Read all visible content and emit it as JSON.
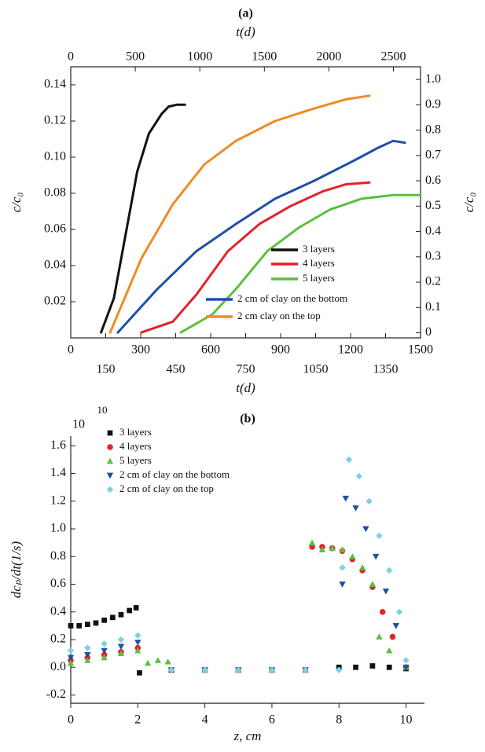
{
  "chart_data": [
    {
      "type": "line",
      "title": "(a)",
      "x_label": "t(d)",
      "x2_label": "t(d)",
      "y_label": "c/c₀",
      "y2_label": "c/c₀",
      "xlim": [
        0,
        1500
      ],
      "xticks": [
        0,
        150,
        300,
        450,
        600,
        750,
        900,
        1050,
        1200,
        1350,
        1500
      ],
      "x2lim": [
        0,
        2710
      ],
      "x2ticks": [
        0,
        500,
        1000,
        1500,
        2000,
        2500
      ],
      "ylim": [
        0,
        0.15
      ],
      "yticks": [
        0.02,
        0.04,
        0.06,
        0.08,
        {
          "value": 0.1,
          "label": "0.10"
        },
        0.12,
        0.14
      ],
      "y2lim": [
        -0.02,
        1.05
      ],
      "y2ticks": [
        0,
        0.1,
        0.2,
        0.3,
        0.4,
        0.5,
        0.6,
        0.7,
        0.8,
        0.9,
        {
          "value": 1,
          "label": "1.0"
        }
      ],
      "grid": false,
      "legend": "lower right",
      "series": [
        {
          "name": "3 layers",
          "color": "#111111",
          "x": [
            130,
            185,
            235,
            285,
            335,
            390,
            420,
            455,
            490
          ],
          "values": [
            0.003,
            0.022,
            0.057,
            0.092,
            0.113,
            0.124,
            0.128,
            0.129,
            0.129
          ]
        },
        {
          "name": "4 layers",
          "color": "#e32228",
          "x": [
            303,
            438,
            539,
            674,
            809,
            944,
            1079,
            1180,
            1281
          ],
          "values": [
            0.003,
            0.009,
            0.024,
            0.048,
            0.063,
            0.073,
            0.081,
            0.085,
            0.086
          ]
        },
        {
          "name": "5 layers",
          "color": "#5cbf3c",
          "x": [
            472,
            607,
            708,
            843,
            978,
            1112,
            1247,
            1382,
            1500
          ],
          "values": [
            0.003,
            0.013,
            0.027,
            0.048,
            0.061,
            0.071,
            0.077,
            0.079,
            0.079
          ]
        },
        {
          "name": "2 cm of clay on the bottom",
          "color": "#1f4fa8",
          "x": [
            202,
            371,
            539,
            708,
            876,
            1045,
            1213,
            1315,
            1382,
            1433
          ],
          "values": [
            0.003,
            0.027,
            0.048,
            0.063,
            0.077,
            0.087,
            0.098,
            0.105,
            0.109,
            0.108
          ]
        },
        {
          "name": "2 cm clay on the top",
          "color": "#f08a24",
          "x": [
            169,
            303,
            438,
            573,
            708,
            876,
            1045,
            1180,
            1281
          ],
          "values": [
            0.003,
            0.044,
            0.074,
            0.096,
            0.109,
            0.12,
            0.127,
            0.132,
            0.134
          ]
        }
      ]
    },
    {
      "type": "scatter",
      "title": "(b)",
      "x_label": "z, cm",
      "y_label": "dcₚ/dt(1/s)",
      "y_multiplier": "10",
      "y_multiplier_exponent": "10",
      "xlim": [
        0,
        10.55
      ],
      "xticks": [
        0,
        2,
        4,
        6,
        8,
        10
      ],
      "ylim": [
        -0.26,
        1.67
      ],
      "yticks": [
        -0.2,
        {
          "value": 0,
          "label": "0.0"
        },
        0.2,
        0.4,
        0.6,
        0.8,
        {
          "value": 1,
          "label": "1.0"
        },
        1.2,
        1.4,
        1.6
      ],
      "grid": false,
      "legend": "upper left",
      "series": [
        {
          "name": "3 layers",
          "color": "#111111",
          "marker": "square",
          "x": [
            0,
            0.25,
            0.5,
            0.75,
            1,
            1.25,
            1.5,
            1.75,
            1.95,
            2.05,
            3,
            4,
            5,
            6,
            7,
            8,
            8.5,
            9,
            9.5,
            10
          ],
          "values": [
            0.3,
            0.3,
            0.31,
            0.32,
            0.34,
            0.36,
            0.38,
            0.41,
            0.43,
            -0.04,
            -0.02,
            -0.02,
            -0.02,
            -0.02,
            -0.02,
            0,
            0,
            0.01,
            0,
            -0.01
          ]
        },
        {
          "name": "4 layers",
          "color": "#e0262c",
          "marker": "circle",
          "x": [
            0,
            0.5,
            1,
            1.5,
            2,
            3,
            4,
            5,
            6,
            7,
            7.2,
            7.5,
            7.8,
            8.1,
            8.4,
            8.7,
            9,
            9.3,
            9.6,
            10
          ],
          "values": [
            0.05,
            0.07,
            0.09,
            0.11,
            0.14,
            -0.02,
            -0.02,
            -0.02,
            -0.02,
            -0.02,
            0.87,
            0.87,
            0.86,
            0.84,
            0.78,
            0.7,
            0.58,
            0.4,
            0.22,
            0
          ]
        },
        {
          "name": "5 layers",
          "color": "#5cc040",
          "marker": "triangle",
          "x": [
            0,
            0.5,
            1,
            1.5,
            2,
            2.3,
            2.6,
            2.9,
            4,
            5,
            6,
            7,
            7.2,
            7.5,
            7.8,
            8.1,
            8.4,
            8.7,
            9,
            9.2,
            9.5,
            10
          ],
          "values": [
            0.03,
            0.05,
            0.07,
            0.1,
            0.12,
            0.03,
            0.05,
            0.04,
            -0.02,
            -0.02,
            -0.02,
            -0.02,
            0.9,
            0.85,
            0.86,
            0.85,
            0.8,
            0.72,
            0.6,
            0.22,
            0.12,
            0
          ]
        },
        {
          "name": "2 cm of clay on the bottom",
          "color": "#1f4fa0",
          "marker": "triangle-down",
          "x": [
            0,
            0.5,
            1,
            1.5,
            2,
            3,
            4,
            5,
            6,
            7,
            8,
            8.1,
            8.2,
            8.5,
            8.8,
            9.1,
            9.4,
            9.7,
            10
          ],
          "values": [
            0.07,
            0.09,
            0.12,
            0.15,
            0.18,
            -0.02,
            -0.02,
            -0.02,
            -0.02,
            -0.02,
            -0.02,
            0.6,
            1.22,
            1.15,
            1,
            0.8,
            0.55,
            0.3,
            0
          ]
        },
        {
          "name": "2 cm of clay on the top",
          "color": "#7fd0e0",
          "marker": "diamond",
          "x": [
            0,
            0.5,
            1,
            1.5,
            2,
            3,
            4,
            5,
            6,
            7,
            8,
            8.1,
            8.3,
            8.6,
            8.9,
            9.2,
            9.5,
            9.8,
            10
          ],
          "values": [
            0.12,
            0.14,
            0.17,
            0.2,
            0.23,
            -0.02,
            -0.02,
            -0.02,
            -0.02,
            -0.02,
            -0.02,
            0.72,
            1.5,
            1.38,
            1.2,
            0.95,
            0.7,
            0.4,
            0.05
          ]
        }
      ]
    }
  ]
}
